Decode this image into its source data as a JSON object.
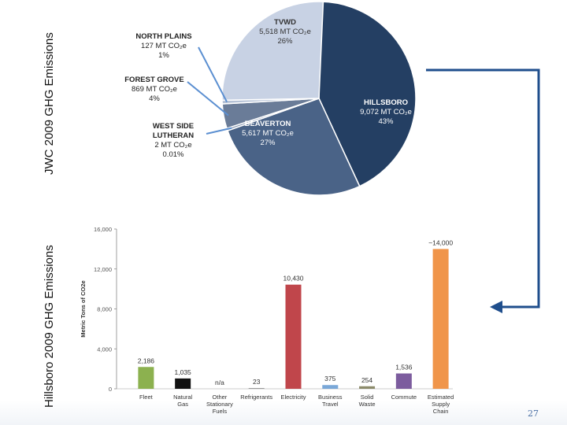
{
  "slide": {
    "side_label_top": "JWC 2009 GHG Emissions",
    "side_label_bottom": "Hillsboro 2009 GHG Emissions",
    "page_number": "27",
    "arrow_color": "#1f4e8c"
  },
  "chart_data": [
    {
      "type": "pie",
      "title": "",
      "unit": "MT CO2e",
      "slices": [
        {
          "name": "HILLSBORO",
          "value": 9072,
          "value_label": "9,072 MT CO₂e",
          "percent_label": "43%",
          "color": "#243f63"
        },
        {
          "name": "BEAVERTON",
          "value": 5617,
          "value_label": "5,617 MT CO₂e",
          "percent_label": "27%",
          "color": "#4a6387"
        },
        {
          "name": "WEST SIDE LUTHERAN",
          "value": 2,
          "value_label": "2 MT CO₂e",
          "percent_label": "0.01%",
          "color": "#8a9ab3"
        },
        {
          "name": "FOREST GROVE",
          "value": 869,
          "value_label": "869 MT CO₂e",
          "percent_label": "4%",
          "color": "#6a7c98"
        },
        {
          "name": "NORTH PLAINS",
          "value": 127,
          "value_label": "127 MT CO₂e",
          "percent_label": "1%",
          "color": "#b5c2d6"
        },
        {
          "name": "TVWD",
          "value": 5518,
          "value_label": "5,518 MT CO₂e",
          "percent_label": "26%",
          "color": "#c8d2e4"
        }
      ]
    },
    {
      "type": "bar",
      "title": "",
      "xlabel": "",
      "ylabel": "Metric Tons of CO2e",
      "ylim": [
        0,
        16000
      ],
      "yticks": [
        0,
        4000,
        8000,
        12000,
        16000
      ],
      "ytick_labels": [
        "0",
        "4,000",
        "8,000",
        "12,000",
        "16,000"
      ],
      "grid": false,
      "categories": [
        "Fleet",
        "Natural Gas",
        "Other Stationary Fuels",
        "Refrigerants",
        "Electricity",
        "Business Travel",
        "Solid Waste",
        "Commute",
        "Estimated Supply Chain"
      ],
      "values": [
        2186,
        1035,
        0,
        23,
        10430,
        375,
        254,
        1536,
        14000
      ],
      "value_labels": [
        "2,186",
        "1,035",
        "n/a",
        "23",
        "10,430",
        "375",
        "254",
        "1,536",
        "~14,000"
      ],
      "colors": [
        "#8cb14f",
        "#111111",
        "#cccccc",
        "#999999",
        "#c0464b",
        "#7aa8d8",
        "#8c8b6b",
        "#7c5c9e",
        "#f0954a"
      ]
    }
  ]
}
